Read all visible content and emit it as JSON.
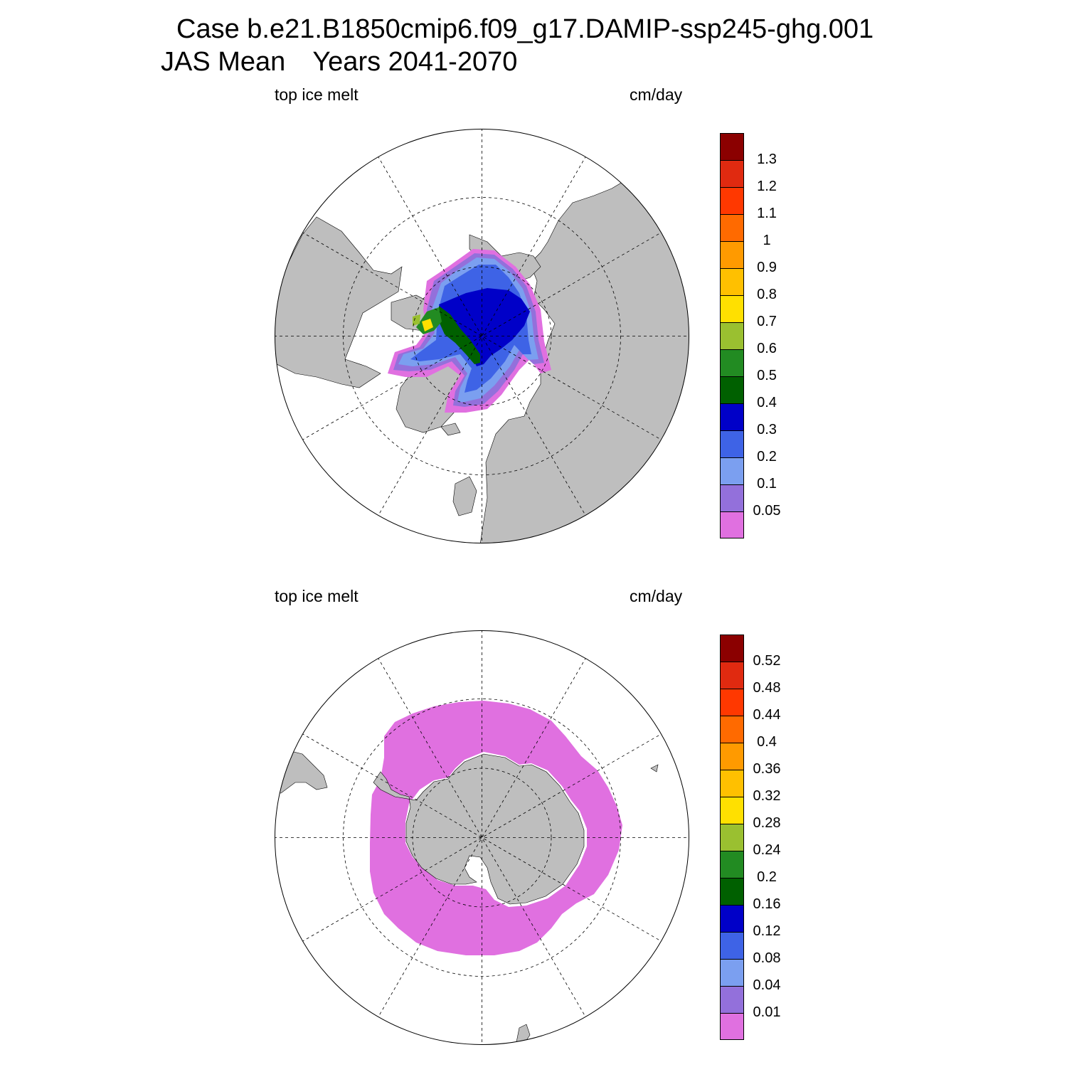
{
  "title": {
    "line1": "Case b.e21.B1850cmip6.f09_g17.DAMIP-ssp245-ghg.001",
    "line2_a": "JAS Mean",
    "line2_b": "Years 2041-2070"
  },
  "colors": {
    "land": "#bebebe",
    "ocean": "#ffffff",
    "levels": [
      "#e070e0",
      "#9370db",
      "#7b9ff0",
      "#3e63e6",
      "#0000c8",
      "#006000",
      "#228b22",
      "#9ac030",
      "#ffe000",
      "#ffc000",
      "#ff9a00",
      "#ff6a00",
      "#ff3800",
      "#e02a10",
      "#8b0000"
    ]
  },
  "panels": [
    {
      "id": "arctic",
      "left_label": "top ice melt",
      "right_label": "cm/day",
      "colorbar_ticks": [
        "0.05",
        "0.1",
        "0.2",
        "0.3",
        "0.4",
        "0.5",
        "0.6",
        "0.7",
        "0.8",
        "0.9",
        "1",
        "1.1",
        "1.2",
        "1.3"
      ]
    },
    {
      "id": "antarctic",
      "left_label": "top ice melt",
      "right_label": "cm/day",
      "colorbar_ticks": [
        "0.01",
        "0.04",
        "0.08",
        "0.12",
        "0.16",
        "0.2",
        "0.24",
        "0.28",
        "0.32",
        "0.36",
        "0.4",
        "0.44",
        "0.48",
        "0.52"
      ]
    }
  ]
}
